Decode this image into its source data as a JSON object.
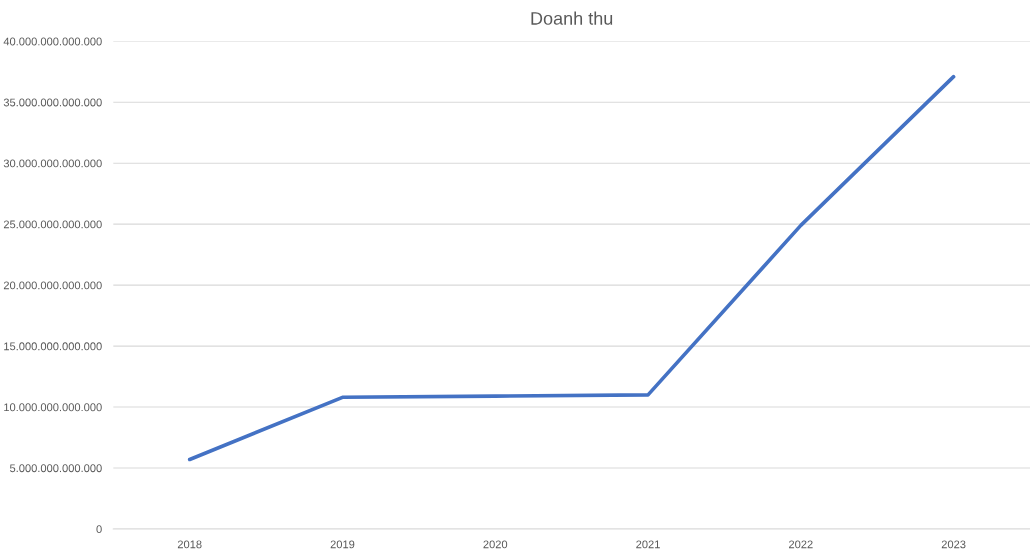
{
  "chart_data": {
    "type": "line",
    "title": "Doanh thu",
    "categories": [
      "2018",
      "2019",
      "2020",
      "2021",
      "2022",
      "2023"
    ],
    "series": [
      {
        "color": "#4472c4",
        "values": [
          5700000000000,
          10800000000000,
          10900000000000,
          11000000000000,
          24900000000000,
          37100000000000
        ]
      }
    ],
    "ylim": [
      0,
      40000000000000
    ],
    "yticks": [
      {
        "value": 0,
        "label": "0"
      },
      {
        "value": 5000000000000,
        "label": "5.000.000.000.000"
      },
      {
        "value": 10000000000000,
        "label": "10.000.000.000.000"
      },
      {
        "value": 15000000000000,
        "label": "15.000.000.000.000"
      },
      {
        "value": 20000000000000,
        "label": "20.000.000.000.000"
      },
      {
        "value": 25000000000000,
        "label": "25.000.000.000.000"
      },
      {
        "value": 30000000000000,
        "label": "30.000.000.000.000"
      },
      {
        "value": 35000000000000,
        "label": "35.000.000.000.000"
      },
      {
        "value": 40000000000000,
        "label": "40.000.000.000.000"
      }
    ],
    "grid": "y",
    "marker": "none",
    "line_style": "solid"
  }
}
